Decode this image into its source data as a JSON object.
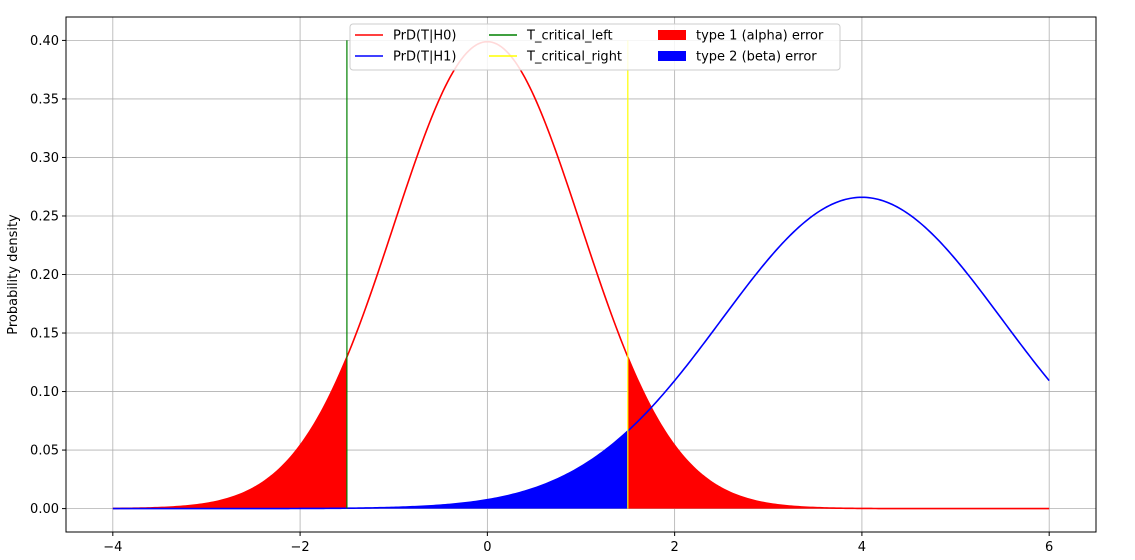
{
  "chart_data": {
    "type": "line",
    "xlabel": "",
    "ylabel": "Probability density",
    "xlim": [
      -4.5,
      6.5
    ],
    "ylim": [
      -0.02,
      0.42
    ],
    "xticks": [
      -4,
      -2,
      0,
      2,
      4,
      6
    ],
    "xtick_labels": [
      "−4",
      "−2",
      "0",
      "2",
      "4",
      "6"
    ],
    "yticks": [
      0.0,
      0.05,
      0.1,
      0.15,
      0.2,
      0.25,
      0.3,
      0.35,
      0.4
    ],
    "ytick_labels": [
      "0.00",
      "0.05",
      "0.10",
      "0.15",
      "0.20",
      "0.25",
      "0.30",
      "0.35",
      "0.40"
    ],
    "grid": true,
    "legend_position": "top-center",
    "series": [
      {
        "name": "PrD(T|H0)",
        "kind": "normal-pdf",
        "mean": 0,
        "sd": 1,
        "x_range": [
          -4,
          6
        ],
        "color": "#ff0000"
      },
      {
        "name": "PrD(T|H1)",
        "kind": "normal-pdf",
        "mean": 4,
        "sd": 1.5,
        "x_range": [
          -4,
          6
        ],
        "color": "#0000ff"
      },
      {
        "name": "T_critical_left",
        "kind": "vline",
        "x": -1.5,
        "y_range": [
          0,
          0.4
        ],
        "color": "#008000"
      },
      {
        "name": "T_critical_right",
        "kind": "vline",
        "x": 1.5,
        "y_range": [
          0,
          0.4
        ],
        "color": "#ffff00"
      }
    ],
    "fills": [
      {
        "name": "type 1 (alpha) error",
        "under": "PrD(T|H0)",
        "regions": [
          [
            -4,
            -1.5
          ],
          [
            1.5,
            6
          ]
        ],
        "color": "#ff0000"
      },
      {
        "name": "type 2 (beta) error",
        "under": "PrD(T|H1)",
        "regions": [
          [
            -4,
            1.5
          ]
        ],
        "color": "#0000ff"
      }
    ],
    "legend": [
      {
        "label": "PrD(T|H0)",
        "marker": "line",
        "color": "#ff0000"
      },
      {
        "label": "PrD(T|H1)",
        "marker": "line",
        "color": "#0000ff"
      },
      {
        "label": "T_critical_left",
        "marker": "line",
        "color": "#008000"
      },
      {
        "label": "T_critical_right",
        "marker": "line",
        "color": "#ffff00"
      },
      {
        "label": "type 1 (alpha) error",
        "marker": "patch",
        "color": "#ff0000"
      },
      {
        "label": "type 2 (beta) error",
        "marker": "patch",
        "color": "#0000ff"
      }
    ]
  }
}
